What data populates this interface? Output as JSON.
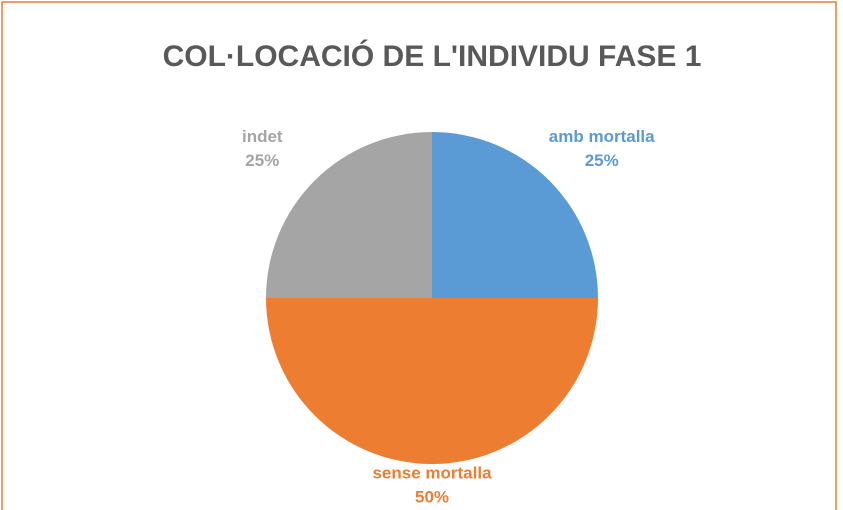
{
  "chart_data": {
    "type": "pie",
    "title": "COL·LOCACIÓ DE L'INDIVIDU FASE 1",
    "categories": [
      "amb mortalla",
      "sense mortalla",
      "indet"
    ],
    "values": [
      25,
      50,
      25
    ],
    "value_labels": [
      "25%",
      "50%",
      "25%"
    ],
    "colors": [
      "#5b9bd5",
      "#ed7d31",
      "#a5a5a5"
    ]
  }
}
